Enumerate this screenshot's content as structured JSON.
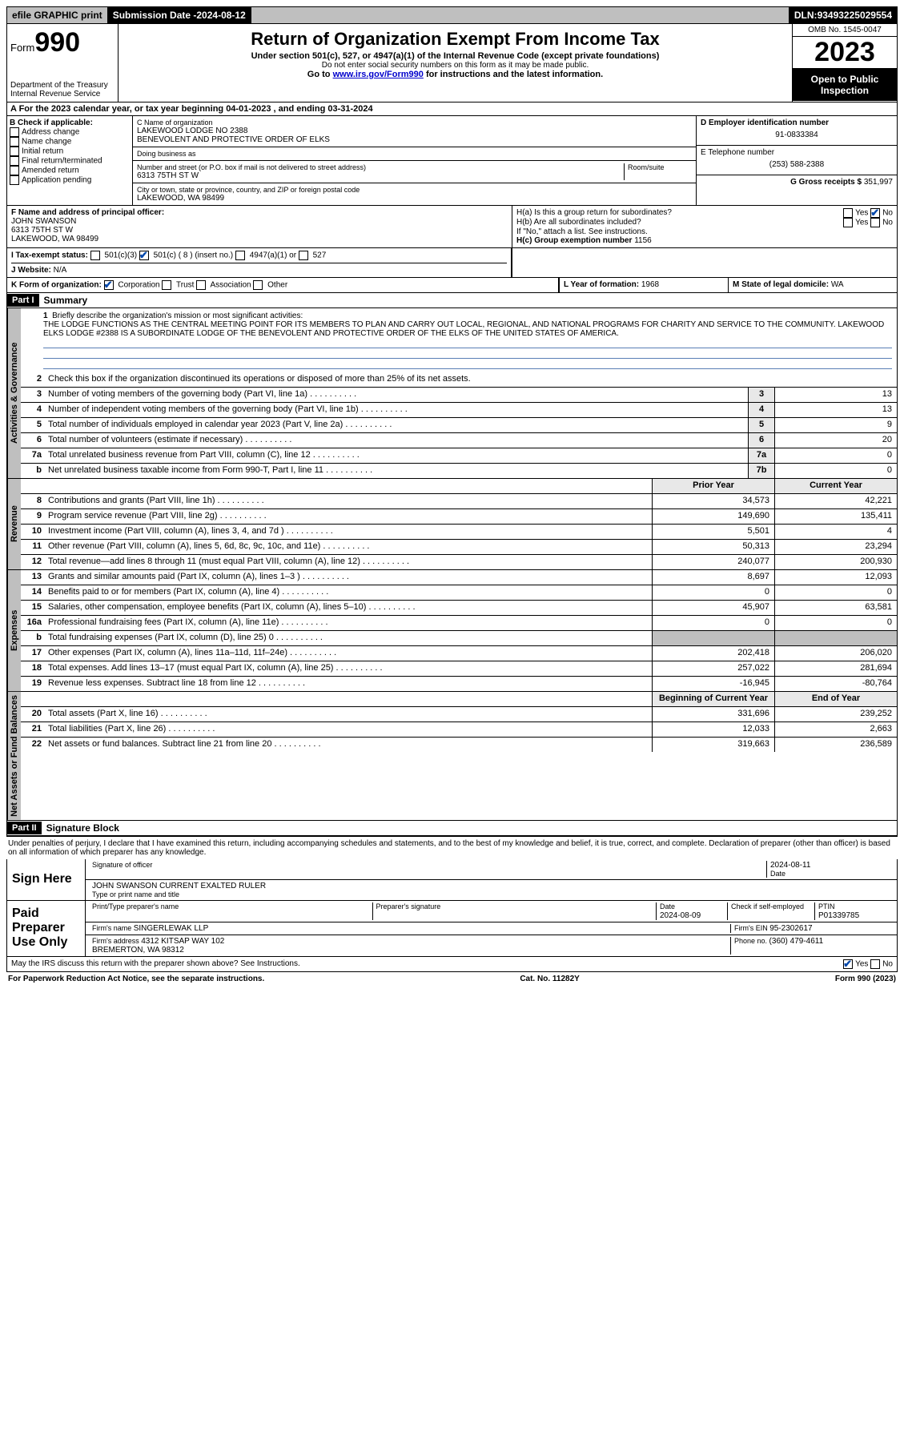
{
  "topbar": {
    "efile": "efile GRAPHIC print",
    "submission_label": "Submission Date - ",
    "submission_date": "2024-08-12",
    "dln_label": "DLN: ",
    "dln": "93493225029554"
  },
  "header": {
    "form_prefix": "Form",
    "form_num": "990",
    "dept1": "Department of the Treasury",
    "dept2": "Internal Revenue Service",
    "title": "Return of Organization Exempt From Income Tax",
    "sub1": "Under section 501(c), 527, or 4947(a)(1) of the Internal Revenue Code (except private foundations)",
    "sub2": "Do not enter social security numbers on this form as it may be made public.",
    "sub3_pre": "Go to ",
    "sub3_link": "www.irs.gov/Form990",
    "sub3_post": " for instructions and the latest information.",
    "omb": "OMB No. 1545-0047",
    "year": "2023",
    "inspect": "Open to Public Inspection"
  },
  "row_a": "A For the 2023 calendar year, or tax year beginning 04-01-2023   , and ending 03-31-2024",
  "col_b": {
    "hdr": "B Check if applicable:",
    "items": [
      "Address change",
      "Name change",
      "Initial return",
      "Final return/terminated",
      "Amended return",
      "Application pending"
    ]
  },
  "col_c": {
    "name_lbl": "C Name of organization",
    "name1": "LAKEWOOD LODGE NO 2388",
    "name2": "BENEVOLENT AND PROTECTIVE ORDER OF ELKS",
    "dba_lbl": "Doing business as",
    "dba": "",
    "addr_lbl": "Number and street (or P.O. box if mail is not delivered to street address)",
    "room_lbl": "Room/suite",
    "addr": "6313 75TH ST W",
    "city_lbl": "City or town, state or province, country, and ZIP or foreign postal code",
    "city": "LAKEWOOD, WA  98499"
  },
  "col_d": {
    "ein_lbl": "D Employer identification number",
    "ein": "91-0833384",
    "tel_lbl": "E Telephone number",
    "tel": "(253) 588-2388",
    "gross_lbl": "G Gross receipts $ ",
    "gross": "351,997"
  },
  "block_f": {
    "lbl": "F Name and address of principal officer:",
    "name": "JOHN SWANSON",
    "addr1": "6313 75TH ST W",
    "addr2": "LAKEWOOD, WA  98499"
  },
  "block_h": {
    "ha": "H(a)  Is this a group return for subordinates?",
    "hb": "H(b)  Are all subordinates included?",
    "hb2": "If \"No,\" attach a list. See instructions.",
    "hc_lbl": "H(c)  Group exemption number  ",
    "hc": "1156",
    "yes": "Yes",
    "no": "No"
  },
  "row_i": {
    "lbl": "I   Tax-exempt status:",
    "opt1": "501(c)(3)",
    "opt2": "501(c) ( 8 ) (insert no.)",
    "opt3": "4947(a)(1) or",
    "opt4": "527"
  },
  "row_j": {
    "lbl": "J   Website: ",
    "val": "N/A"
  },
  "row_k": {
    "lbl": "K Form of organization:",
    "opts": [
      "Corporation",
      "Trust",
      "Association",
      "Other"
    ],
    "l_lbl": "L Year of formation: ",
    "l_val": "1968",
    "m_lbl": "M State of legal domicile: ",
    "m_val": "WA"
  },
  "part1": {
    "hdr": "Part I",
    "title": "Summary",
    "line1_lbl": "Briefly describe the organization's mission or most significant activities:",
    "mission": "THE LODGE FUNCTIONS AS THE CENTRAL MEETING POINT FOR ITS MEMBERS TO PLAN AND CARRY OUT LOCAL, REGIONAL, AND NATIONAL PROGRAMS FOR CHARITY AND SERVICE TO THE COMMUNITY. LAKEWOOD ELKS LODGE #2388 IS A SUBORDINATE LODGE OF THE BENEVOLENT AND PROTECTIVE ORDER OF THE ELKS OF THE UNITED STATES OF AMERICA.",
    "line2": "Check this box      if the organization discontinued its operations or disposed of more than 25% of its net assets."
  },
  "tabs": {
    "gov": "Activities & Governance",
    "rev": "Revenue",
    "exp": "Expenses",
    "net": "Net Assets or Fund Balances"
  },
  "gov_lines": [
    {
      "n": "3",
      "d": "Number of voting members of the governing body (Part VI, line 1a)",
      "b": "3",
      "v": "13"
    },
    {
      "n": "4",
      "d": "Number of independent voting members of the governing body (Part VI, line 1b)",
      "b": "4",
      "v": "13"
    },
    {
      "n": "5",
      "d": "Total number of individuals employed in calendar year 2023 (Part V, line 2a)",
      "b": "5",
      "v": "9"
    },
    {
      "n": "6",
      "d": "Total number of volunteers (estimate if necessary)",
      "b": "6",
      "v": "20"
    },
    {
      "n": "7a",
      "d": "Total unrelated business revenue from Part VIII, column (C), line 12",
      "b": "7a",
      "v": "0"
    },
    {
      "n": "b",
      "d": "Net unrelated business taxable income from Form 990-T, Part I, line 11",
      "b": "7b",
      "v": "0"
    }
  ],
  "col_hdrs": {
    "prior": "Prior Year",
    "current": "Current Year",
    "begin": "Beginning of Current Year",
    "end": "End of Year"
  },
  "rev_lines": [
    {
      "n": "8",
      "d": "Contributions and grants (Part VIII, line 1h)",
      "p": "34,573",
      "c": "42,221"
    },
    {
      "n": "9",
      "d": "Program service revenue (Part VIII, line 2g)",
      "p": "149,690",
      "c": "135,411"
    },
    {
      "n": "10",
      "d": "Investment income (Part VIII, column (A), lines 3, 4, and 7d )",
      "p": "5,501",
      "c": "4"
    },
    {
      "n": "11",
      "d": "Other revenue (Part VIII, column (A), lines 5, 6d, 8c, 9c, 10c, and 11e)",
      "p": "50,313",
      "c": "23,294"
    },
    {
      "n": "12",
      "d": "Total revenue—add lines 8 through 11 (must equal Part VIII, column (A), line 12)",
      "p": "240,077",
      "c": "200,930"
    }
  ],
  "exp_lines": [
    {
      "n": "13",
      "d": "Grants and similar amounts paid (Part IX, column (A), lines 1–3 )",
      "p": "8,697",
      "c": "12,093"
    },
    {
      "n": "14",
      "d": "Benefits paid to or for members (Part IX, column (A), line 4)",
      "p": "0",
      "c": "0"
    },
    {
      "n": "15",
      "d": "Salaries, other compensation, employee benefits (Part IX, column (A), lines 5–10)",
      "p": "45,907",
      "c": "63,581"
    },
    {
      "n": "16a",
      "d": "Professional fundraising fees (Part IX, column (A), line 11e)",
      "p": "0",
      "c": "0"
    },
    {
      "n": "b",
      "d": "Total fundraising expenses (Part IX, column (D), line 25) 0",
      "p": "",
      "c": "",
      "gray": true
    },
    {
      "n": "17",
      "d": "Other expenses (Part IX, column (A), lines 11a–11d, 11f–24e)",
      "p": "202,418",
      "c": "206,020"
    },
    {
      "n": "18",
      "d": "Total expenses. Add lines 13–17 (must equal Part IX, column (A), line 25)",
      "p": "257,022",
      "c": "281,694"
    },
    {
      "n": "19",
      "d": "Revenue less expenses. Subtract line 18 from line 12",
      "p": "-16,945",
      "c": "-80,764"
    }
  ],
  "net_lines": [
    {
      "n": "20",
      "d": "Total assets (Part X, line 16)",
      "p": "331,696",
      "c": "239,252"
    },
    {
      "n": "21",
      "d": "Total liabilities (Part X, line 26)",
      "p": "12,033",
      "c": "2,663"
    },
    {
      "n": "22",
      "d": "Net assets or fund balances. Subtract line 21 from line 20",
      "p": "319,663",
      "c": "236,589"
    }
  ],
  "part2": {
    "hdr": "Part II",
    "title": "Signature Block",
    "perjury": "Under penalties of perjury, I declare that I have examined this return, including accompanying schedules and statements, and to the best of my knowledge and belief, it is true, correct, and complete. Declaration of preparer (other than officer) is based on all information of which preparer has any knowledge."
  },
  "sign": {
    "here": "Sign Here",
    "sig_lbl": "Signature of officer",
    "date_lbl": "Date",
    "date": "2024-08-11",
    "name": "JOHN SWANSON  CURRENT EXALTED RULER",
    "name_lbl": "Type or print name and title"
  },
  "paid": {
    "hdr": "Paid Preparer Use Only",
    "col1": "Print/Type preparer's name",
    "col2": "Preparer's signature",
    "col3_lbl": "Date",
    "col3": "2024-08-09",
    "col4": "Check       if self-employed",
    "col5_lbl": "PTIN",
    "col5": "P01339785",
    "firm_name_lbl": "Firm's name   ",
    "firm_name": "SINGERLEWAK LLP",
    "firm_ein_lbl": "Firm's EIN  ",
    "firm_ein": "95-2302617",
    "firm_addr_lbl": "Firm's address ",
    "firm_addr1": "4312 KITSAP WAY 102",
    "firm_addr2": "BREMERTON, WA  98312",
    "phone_lbl": "Phone no. ",
    "phone": "(360) 479-4611"
  },
  "discuss": "May the IRS discuss this return with the preparer shown above? See Instructions.",
  "footer": {
    "left": "For Paperwork Reduction Act Notice, see the separate instructions.",
    "mid": "Cat. No. 11282Y",
    "right": "Form 990 (2023)"
  }
}
